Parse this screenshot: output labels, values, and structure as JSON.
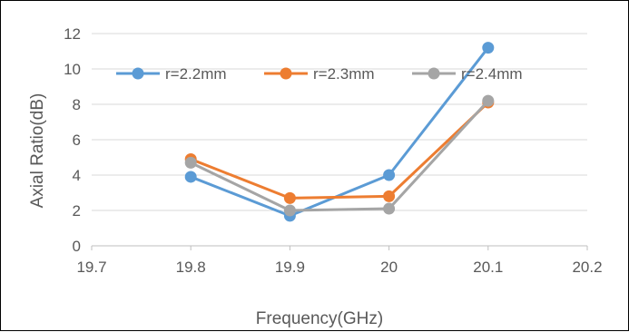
{
  "chart_data": {
    "type": "line",
    "title": "",
    "xlabel": "Frequency(GHz)",
    "ylabel": "Axial Ratio(dB)",
    "xlim": [
      19.7,
      20.2
    ],
    "ylim": [
      0,
      12
    ],
    "x_ticks": [
      "19.7",
      "19.8",
      "19.9",
      "20",
      "20.1",
      "20.2"
    ],
    "y_ticks": [
      "0",
      "2",
      "4",
      "6",
      "8",
      "10",
      "12"
    ],
    "grid": "horizontal",
    "legend_position": "top",
    "x": [
      19.8,
      19.9,
      20.0,
      20.1
    ],
    "series": [
      {
        "name": "r=2.2mm",
        "color": "#5B9BD5",
        "values": [
          3.9,
          1.7,
          4.0,
          11.2
        ]
      },
      {
        "name": "r=2.3mm",
        "color": "#ED7D31",
        "values": [
          4.9,
          2.7,
          2.8,
          8.1
        ]
      },
      {
        "name": "r=2.4mm",
        "color": "#A5A5A5",
        "values": [
          4.7,
          2.0,
          2.1,
          8.2
        ]
      }
    ]
  }
}
